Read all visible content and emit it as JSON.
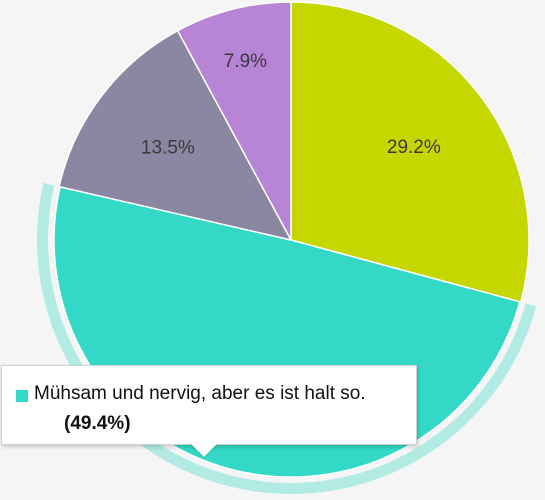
{
  "chart_data": {
    "type": "pie",
    "slices": [
      {
        "label": "",
        "value": 29.2,
        "display": "29.2%",
        "color": "#c6d600"
      },
      {
        "label": "Mühsam und nervig, aber es ist halt so.",
        "value": 49.4,
        "display": "49.4%",
        "color": "#33d9c6",
        "highlighted": true
      },
      {
        "label": "",
        "value": 13.5,
        "display": "13.5%",
        "color": "#8b87a2"
      },
      {
        "label": "",
        "value": 7.9,
        "display": "7.9%",
        "color": "#b784d6"
      }
    ]
  },
  "tooltip": {
    "label": "Mühsam und nervig, aber es ist halt so.",
    "value": "(49.4%)",
    "color": "#33d9c6"
  }
}
